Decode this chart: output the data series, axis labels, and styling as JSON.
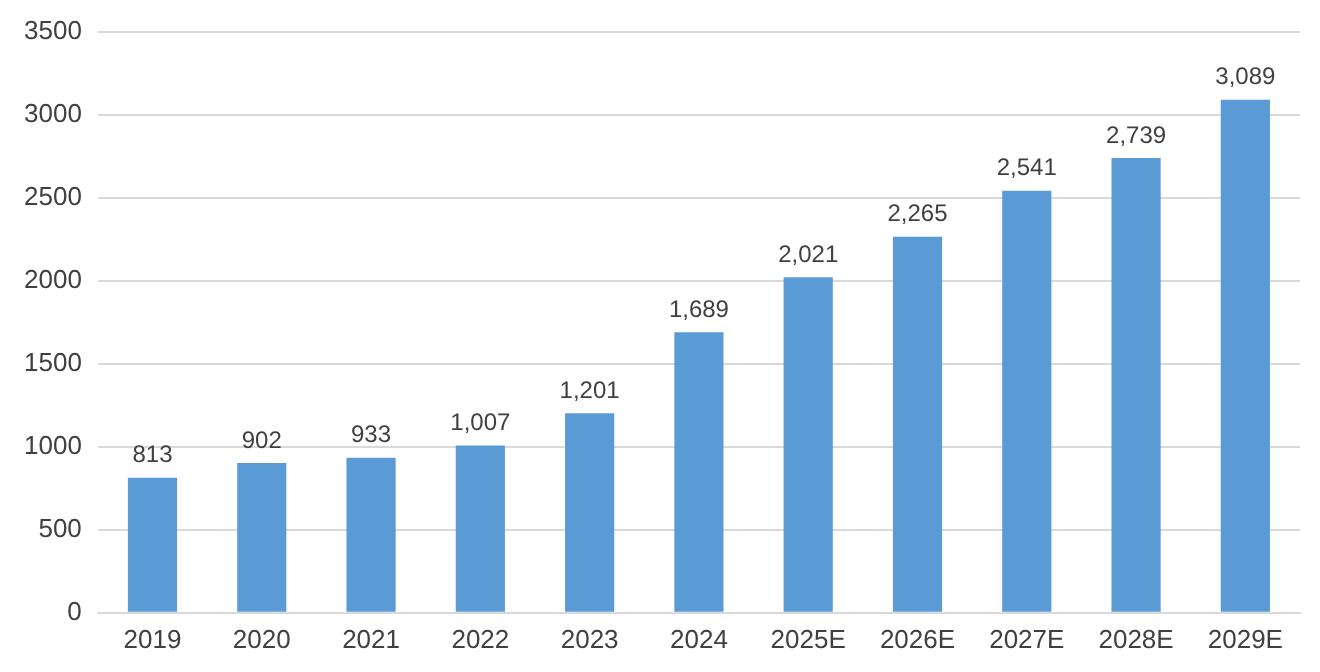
{
  "chart_data": {
    "type": "bar",
    "categories": [
      "2019",
      "2020",
      "2021",
      "2022",
      "2023",
      "2024",
      "2025E",
      "2026E",
      "2027E",
      "2028E",
      "2029E"
    ],
    "values": [
      813,
      902,
      933,
      1007,
      1201,
      1689,
      2021,
      2265,
      2541,
      2739,
      3089
    ],
    "value_labels": [
      "813",
      "902",
      "933",
      "1,007",
      "1,201",
      "1,689",
      "2,021",
      "2,265",
      "2,541",
      "2,739",
      "3,089"
    ],
    "color": "#5b9bd5",
    "ylim": [
      0,
      3500
    ],
    "yticks": [
      0,
      500,
      1000,
      1500,
      2000,
      2500,
      3000,
      3500
    ],
    "grid": "y",
    "legend": false
  }
}
